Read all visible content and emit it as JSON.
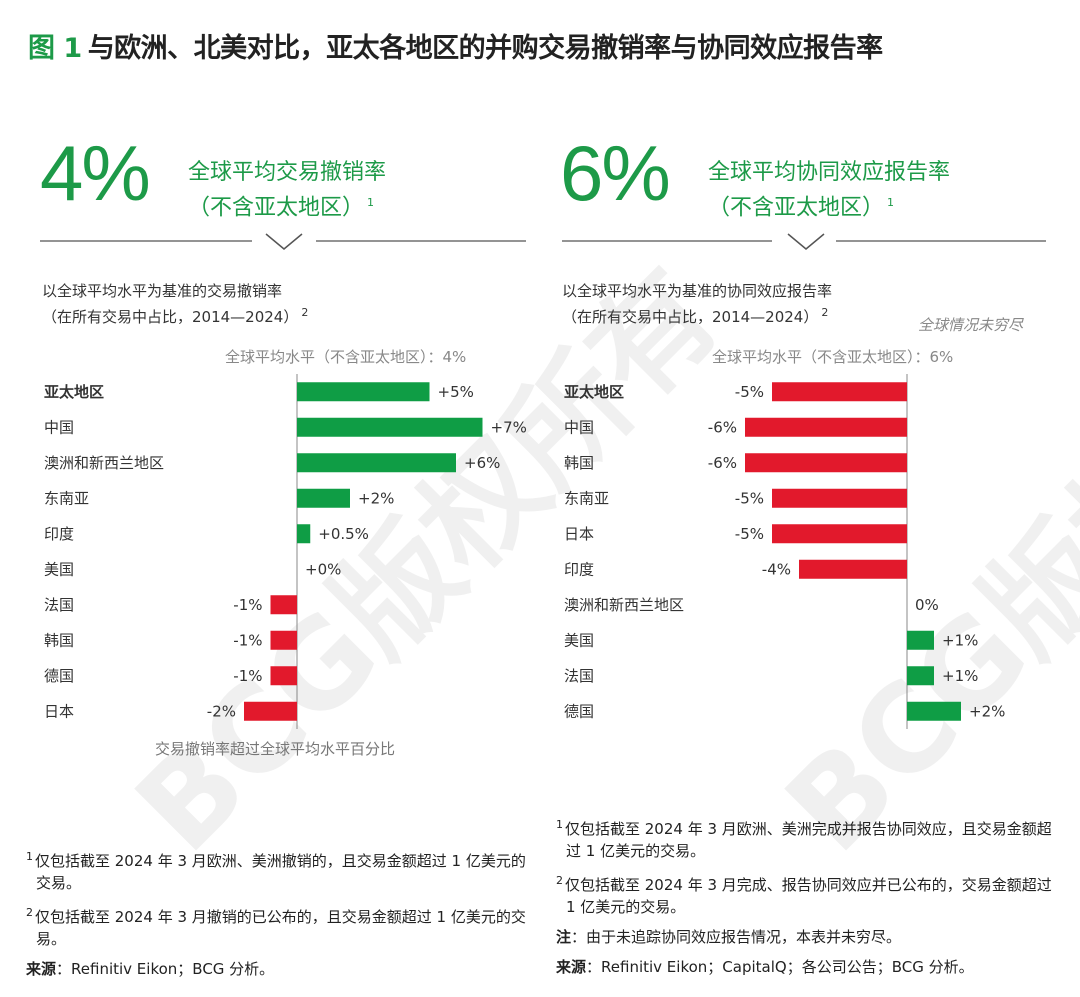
{
  "title": {
    "fig": "图 1",
    "text": "与欧洲、北美对比，亚太各地区的并购交易撤销率与协同效应报告率"
  },
  "watermark": "BCG版权所有",
  "left": {
    "big_value": "4%",
    "big_label_1": "全球平均交易撤销率",
    "big_label_2": "（不含亚太地区）",
    "big_label_sup": "1",
    "subtitle_1": "以全球平均水平为基准的交易撤销率",
    "subtitle_2": "（在所有交易中占比，2014—2024）",
    "subtitle_sup": "2",
    "reference": "全球平均水平（不含亚太地区）：4%",
    "axis_caption": "交易撤销率超过全球平均水平百分比"
  },
  "right": {
    "big_value": "6%",
    "big_label_1": "全球平均协同效应报告率",
    "big_label_2": "（不含亚太地区）",
    "big_label_sup": "1",
    "subtitle_1": "以全球平均水平为基准的协同效应报告率",
    "subtitle_2": "（在所有交易中占比，2014—2024）",
    "subtitle_sup": "2",
    "note": "全球情况未穷尽",
    "reference": "全球平均水平（不含亚太地区）：6%"
  },
  "chart_data": [
    {
      "type": "bar",
      "orientation": "horizontal",
      "categories": [
        "亚太地区",
        "中国",
        "澳洲和新西兰地区",
        "东南亚",
        "印度",
        "美国",
        "法国",
        "韩国",
        "德国",
        "日本"
      ],
      "values": [
        5,
        7,
        6,
        2,
        0.5,
        0,
        -1,
        -1,
        -1,
        -2
      ],
      "labels": [
        "+5%",
        "+7%",
        "+6%",
        "+2%",
        "+0.5%",
        "+0%",
        "-1%",
        "-1%",
        "-1%",
        "-2%"
      ],
      "bold_first": true,
      "colors": {
        "positive": "#0f9d45",
        "negative": "#e2192c"
      },
      "xlabel": "交易撤销率超过全球平均水平百分比"
    },
    {
      "type": "bar",
      "orientation": "horizontal",
      "categories": [
        "亚太地区",
        "中国",
        "韩国",
        "东南亚",
        "日本",
        "印度",
        "澳洲和新西兰地区",
        "美国",
        "法国",
        "德国"
      ],
      "values": [
        -5,
        -6,
        -6,
        -5,
        -5,
        -4,
        0,
        1,
        1,
        2
      ],
      "labels": [
        "-5%",
        "-6%",
        "-6%",
        "-5%",
        "-5%",
        "-4%",
        "0%",
        "+1%",
        "+1%",
        "+2%"
      ],
      "bold_first": true,
      "colors": {
        "positive": "#0f9d45",
        "negative": "#e2192c"
      }
    }
  ],
  "footnotes_left": [
    {
      "sup": "1",
      "text": "仅包括截至 2024 年 3 月欧洲、美洲撤销的，且交易金额超过 1 亿美元的交易。"
    },
    {
      "sup": "2",
      "text": "仅包括截至 2024 年 3 月撤销的已公布的，且交易金额超过 1 亿美元的交易。"
    }
  ],
  "source_left": {
    "label": "来源",
    "text": "：Refinitiv Eikon；BCG 分析。"
  },
  "footnotes_right": [
    {
      "sup": "1",
      "text": "仅包括截至 2024 年 3 月欧洲、美洲完成并报告协同效应，且交易金额超过 1 亿美元的交易。"
    },
    {
      "sup": "2",
      "text": "仅包括截至 2024 年 3 月完成、报告协同效应并已公布的，交易金额超过 1 亿美元的交易。"
    }
  ],
  "note_right": {
    "label": "注",
    "text": "：由于未追踪协同效应报告情况，本表并未穷尽。"
  },
  "source_right": {
    "label": "来源",
    "text": "：Refinitiv Eikon；CapitalQ；各公司公告；BCG 分析。"
  }
}
